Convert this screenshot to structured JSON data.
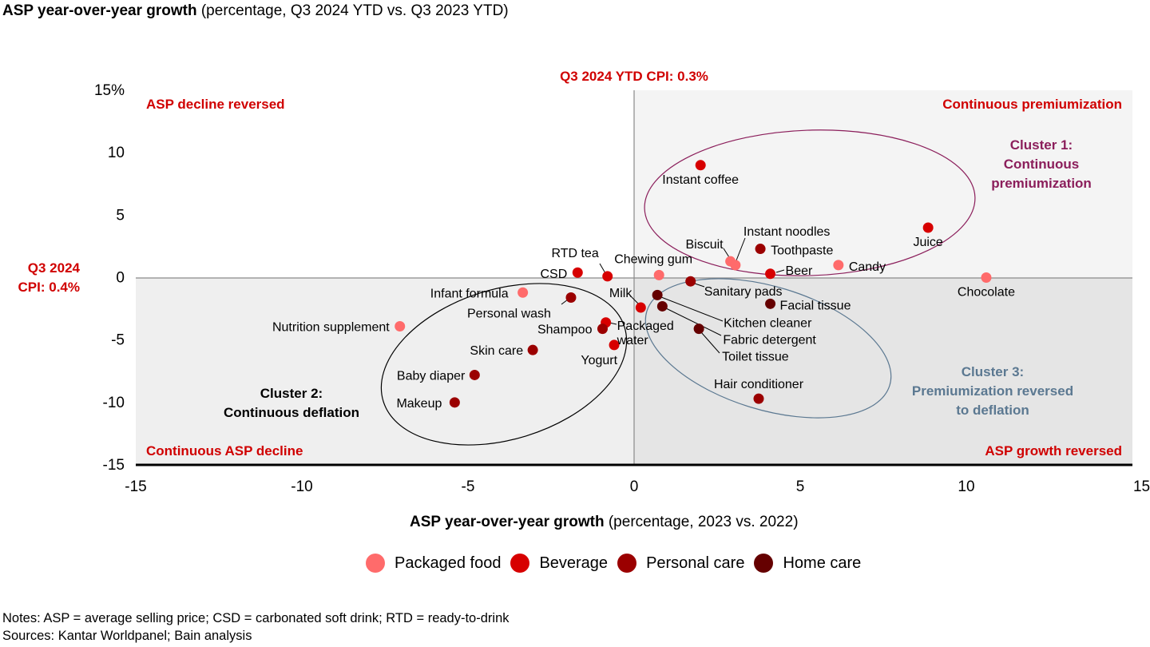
{
  "title": {
    "bold": "ASP year-over-year growth",
    "rest": " (percentage, Q3 2024 YTD vs. Q3 2023 YTD)"
  },
  "xaxis_title": {
    "bold": "ASP year-over-year growth",
    "rest": " (percentage, 2023 vs. 2022)"
  },
  "reference_lines": {
    "vertical_label": "Q3 2024 YTD CPI: 0.3%",
    "horizontal_label_line1": "Q3 2024",
    "horizontal_label_line2": "CPI: 0.4%"
  },
  "quadrants": {
    "top_left": "ASP decline reversed",
    "top_right": "Continuous premiumization",
    "bottom_left": "Continuous ASP decline",
    "bottom_right": "ASP growth reversed"
  },
  "clusters": [
    {
      "name": "cluster-1",
      "lines": [
        "Cluster 1:",
        "Continuous",
        "premiumization"
      ],
      "color": "#8B1E5B"
    },
    {
      "name": "cluster-2",
      "lines": [
        "Cluster 2:",
        "Continuous deflation"
      ],
      "color": "#000000"
    },
    {
      "name": "cluster-3",
      "lines": [
        "Cluster 3:",
        "Premiumization reversed",
        "to deflation"
      ],
      "color": "#5B7891"
    }
  ],
  "legend": [
    {
      "label": "Packaged food",
      "color": "#FF6B6B"
    },
    {
      "label": "Beverage",
      "color": "#D70000"
    },
    {
      "label": "Personal care",
      "color": "#9B0000"
    },
    {
      "label": "Home care",
      "color": "#650000"
    }
  ],
  "notes": "Notes: ASP = average selling price; CSD = carbonated soft drink; RTD = ready-to-drink",
  "sources": "Sources: Kantar Worldpanel; Bain analysis",
  "chart_data": {
    "type": "scatter",
    "title": "ASP year-over-year growth (percentage, Q3 2024 YTD vs. Q3 2023 YTD)",
    "xlabel": "ASP year-over-year growth (percentage, 2023 vs. 2022)",
    "ylabel": "ASP year-over-year growth (percentage, Q3 2024 YTD vs. Q3 2023 YTD)",
    "xlim": [
      -15,
      15
    ],
    "ylim": [
      -15,
      15
    ],
    "xticks": [
      "-15",
      "-10",
      "-5",
      "0",
      "5",
      "10",
      "15%"
    ],
    "yticks": [
      "15%",
      "10",
      "5",
      "0",
      "-5",
      "-10",
      "-15"
    ],
    "grid": false,
    "legend_position": "bottom",
    "series": [
      {
        "name": "Packaged food",
        "points": [
          {
            "label": "Biscuit",
            "x": 2.9,
            "y": 1.3
          },
          {
            "label": "Instant noodles",
            "x": 3.05,
            "y": 1.0
          },
          {
            "label": "Candy",
            "x": 6.15,
            "y": 1.0
          },
          {
            "label": "Chocolate",
            "x": 10.6,
            "y": 0.0
          },
          {
            "label": "Chewing gum",
            "x": 0.75,
            "y": 0.2
          },
          {
            "label": "Infant formula",
            "x": -3.35,
            "y": -1.2
          },
          {
            "label": "Nutrition supplement",
            "x": -7.05,
            "y": -3.9
          }
        ]
      },
      {
        "name": "Beverage",
        "points": [
          {
            "label": "Instant coffee",
            "x": 2.0,
            "y": 9.0
          },
          {
            "label": "Juice",
            "x": 8.85,
            "y": 4.0
          },
          {
            "label": "Beer",
            "x": 4.1,
            "y": 0.3
          },
          {
            "label": "RTD tea",
            "x": -0.8,
            "y": 0.1
          },
          {
            "label": "CSD",
            "x": -1.7,
            "y": 0.4
          },
          {
            "label": "Milk",
            "x": 0.2,
            "y": -2.4
          },
          {
            "label": "Packaged water",
            "x": -0.85,
            "y": -3.6
          },
          {
            "label": "Yogurt",
            "x": -0.6,
            "y": -5.4
          }
        ]
      },
      {
        "name": "Personal care",
        "points": [
          {
            "label": "Toothpaste",
            "x": 3.8,
            "y": 2.3
          },
          {
            "label": "Sanitary pads",
            "x": 1.7,
            "y": -0.3
          },
          {
            "label": "Hair conditioner",
            "x": 3.75,
            "y": -9.7
          },
          {
            "label": "Personal wash",
            "x": -1.9,
            "y": -1.6
          },
          {
            "label": "Shampoo",
            "x": -0.95,
            "y": -4.1
          },
          {
            "label": "Skin care",
            "x": -3.05,
            "y": -5.8
          },
          {
            "label": "Baby diaper",
            "x": -4.8,
            "y": -7.8
          },
          {
            "label": "Makeup",
            "x": -5.4,
            "y": -10.0
          }
        ]
      },
      {
        "name": "Home care",
        "points": [
          {
            "label": "Kitchen cleaner",
            "x": 0.7,
            "y": -1.4
          },
          {
            "label": "Fabric detergent",
            "x": 0.85,
            "y": -2.3
          },
          {
            "label": "Toilet tissue",
            "x": 1.95,
            "y": -4.1
          },
          {
            "label": "Facial tissue",
            "x": 4.1,
            "y": -2.1
          }
        ]
      }
    ],
    "reference_lines": [
      {
        "axis": "x",
        "value": 0.3,
        "label": "Q3 2024 YTD CPI: 0.3%"
      },
      {
        "axis": "y",
        "value": 0.4,
        "label": "Q3 2024 CPI: 0.4%"
      }
    ]
  }
}
